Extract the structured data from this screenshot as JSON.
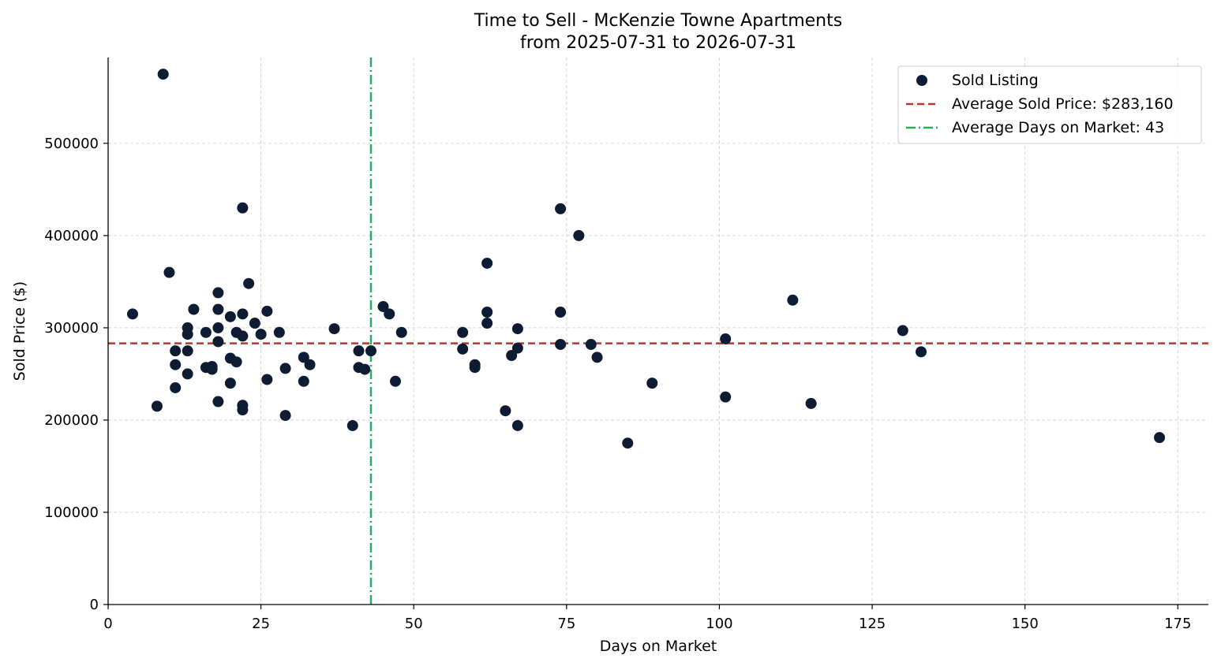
{
  "chart_data": {
    "type": "scatter",
    "title": "Time to Sell - McKenzie Towne Apartments",
    "subtitle": "from 2025-07-31 to 2026-07-31",
    "xlabel": "Days on Market",
    "ylabel": "Sold Price ($)",
    "xlim": [
      0,
      180
    ],
    "ylim": [
      0,
      593000
    ],
    "x_ticks": [
      0,
      25,
      50,
      75,
      100,
      125,
      150,
      175
    ],
    "y_ticks": [
      0,
      100000,
      200000,
      300000,
      400000,
      500000
    ],
    "grid": true,
    "legend_position": "top-right",
    "colors": {
      "points": "#0d1b33",
      "avg_price_line": "#b03a2e",
      "avg_days_line": "#27ae60"
    },
    "legend": [
      {
        "label": "Sold Listing",
        "kind": "marker"
      },
      {
        "label": "Average Sold Price: $283,160",
        "kind": "dashed"
      },
      {
        "label": "Average Days on Market: 43",
        "kind": "dashdot"
      }
    ],
    "average_price": 283160,
    "average_days": 43,
    "series": [
      {
        "name": "Sold Listing",
        "points": [
          [
            4,
            315000
          ],
          [
            8,
            215000
          ],
          [
            9,
            575000
          ],
          [
            10,
            360000
          ],
          [
            11,
            275000
          ],
          [
            11,
            260000
          ],
          [
            11,
            235000
          ],
          [
            13,
            300000
          ],
          [
            13,
            293000
          ],
          [
            13,
            275000
          ],
          [
            13,
            250000
          ],
          [
            14,
            320000
          ],
          [
            16,
            295000
          ],
          [
            16,
            257000
          ],
          [
            17,
            258000
          ],
          [
            17,
            255000
          ],
          [
            18,
            338000
          ],
          [
            18,
            320000
          ],
          [
            18,
            300000
          ],
          [
            18,
            285000
          ],
          [
            18,
            220000
          ],
          [
            20,
            312000
          ],
          [
            20,
            267000
          ],
          [
            20,
            240000
          ],
          [
            21,
            295000
          ],
          [
            21,
            263000
          ],
          [
            22,
            430000
          ],
          [
            22,
            315000
          ],
          [
            22,
            291000
          ],
          [
            22,
            216000
          ],
          [
            22,
            211000
          ],
          [
            23,
            348000
          ],
          [
            24,
            305000
          ],
          [
            25,
            293000
          ],
          [
            26,
            318000
          ],
          [
            26,
            244000
          ],
          [
            28,
            295000
          ],
          [
            29,
            256000
          ],
          [
            29,
            205000
          ],
          [
            32,
            268000
          ],
          [
            32,
            242000
          ],
          [
            33,
            260000
          ],
          [
            37,
            299000
          ],
          [
            40,
            194000
          ],
          [
            41,
            275000
          ],
          [
            41,
            257000
          ],
          [
            42,
            255000
          ],
          [
            43,
            275000
          ],
          [
            45,
            323000
          ],
          [
            46,
            315000
          ],
          [
            47,
            242000
          ],
          [
            48,
            295000
          ],
          [
            58,
            295000
          ],
          [
            58,
            277000
          ],
          [
            60,
            260000
          ],
          [
            60,
            257000
          ],
          [
            62,
            370000
          ],
          [
            62,
            317000
          ],
          [
            62,
            305000
          ],
          [
            65,
            210000
          ],
          [
            66,
            270000
          ],
          [
            67,
            299000
          ],
          [
            67,
            278000
          ],
          [
            67,
            194000
          ],
          [
            74,
            429000
          ],
          [
            74,
            317000
          ],
          [
            74,
            282000
          ],
          [
            77,
            400000
          ],
          [
            79,
            282000
          ],
          [
            80,
            268000
          ],
          [
            85,
            175000
          ],
          [
            89,
            240000
          ],
          [
            101,
            288000
          ],
          [
            101,
            225000
          ],
          [
            112,
            330000
          ],
          [
            115,
            218000
          ],
          [
            130,
            297000
          ],
          [
            133,
            274000
          ],
          [
            172,
            181000
          ]
        ]
      }
    ]
  }
}
